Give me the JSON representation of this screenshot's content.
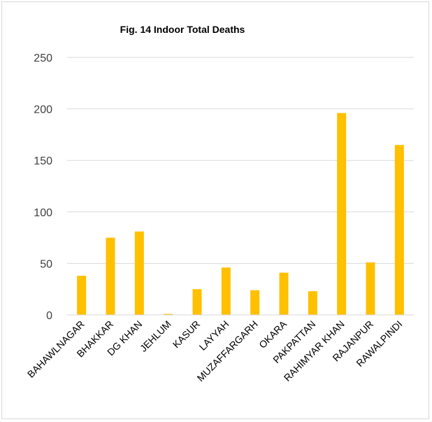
{
  "chart_data": {
    "type": "bar",
    "title": "Fig. 14 Indoor Total Deaths",
    "xlabel": "",
    "ylabel": "",
    "categories": [
      "BAHAWLNAGAR",
      "BHAKKAR",
      "DG KHAN",
      "JEHLUM",
      "KASUR",
      "LAYYAH",
      "MUZAFFARGARH",
      "OKARA",
      "PAKPATTAN",
      "RAHIMYAR KHAN",
      "RAJANPUR",
      "RAWALPINDI"
    ],
    "values": [
      38,
      75,
      81,
      1,
      25,
      46,
      24,
      41,
      23,
      196,
      51,
      165
    ],
    "ylim": [
      0,
      250
    ],
    "yticks": [
      0,
      50,
      100,
      150,
      200,
      250
    ],
    "grid": true,
    "legend": "none",
    "bar_color": "#FFC000"
  }
}
